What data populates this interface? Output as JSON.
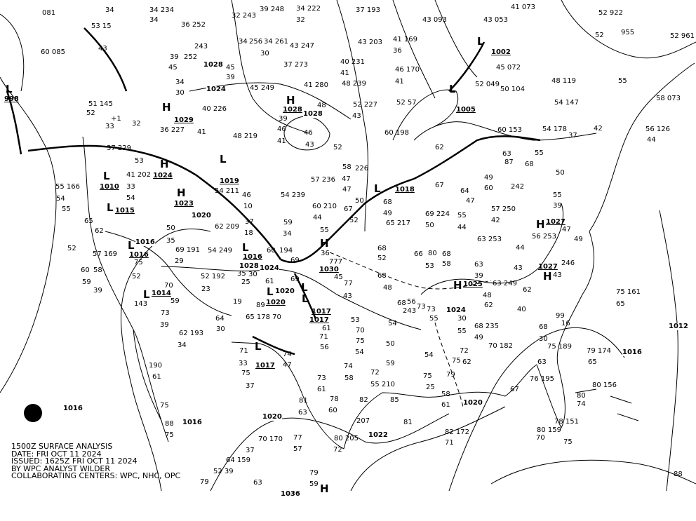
{
  "info": {
    "line1": "1500Z SURFACE ANALYSIS",
    "line2": "DATE: FRI OCT 11 2024",
    "line3": "ISSUED: 1625Z FRI OCT 11 2024",
    "line4": "BY WPC ANALYST WILDER",
    "line5": "COLLABORATING CENTERS: WPC, NHC, OPC"
  },
  "logo": "NOAA",
  "colors": {
    "lines": "#000000",
    "background": "#ffffff"
  },
  "centers": [
    {
      "type": "L",
      "pressure": "998"
    },
    {
      "type": "L",
      "pressure": "1002"
    },
    {
      "type": "L",
      "pressure": "1005"
    },
    {
      "type": "H",
      "pressure": "1029"
    },
    {
      "type": "L",
      "pressure": "1019"
    },
    {
      "type": "H",
      "pressure": "1024"
    },
    {
      "type": "L",
      "pressure": "1010"
    },
    {
      "type": "L",
      "pressure": "1015"
    },
    {
      "type": "H",
      "pressure": "1023"
    },
    {
      "type": "L",
      "pressure": "1016"
    },
    {
      "type": "H",
      "pressure": "1030"
    },
    {
      "type": "L",
      "pressure": "1018"
    },
    {
      "type": "L",
      "pressure": "1017"
    },
    {
      "type": "L",
      "pressure": "1017"
    },
    {
      "type": "L",
      "pressure": "1014"
    },
    {
      "type": "L",
      "pressure": "1017"
    },
    {
      "type": "H",
      "pressure": "1025"
    },
    {
      "type": "H",
      "pressure": "1027"
    },
    {
      "type": "H",
      "pressure": "1027"
    },
    {
      "type": "H",
      "pressure": ""
    },
    {
      "type": "L",
      "pressure": "1020"
    },
    {
      "type": "H",
      "pressure": "1028"
    },
    {
      "type": "L",
      "pressure": "1016"
    }
  ],
  "isobars": [
    "1016",
    "1016",
    "1020",
    "1022",
    "1020",
    "1016",
    "1012",
    "1024",
    "1028",
    "1024",
    "1028",
    "1020",
    "1016",
    "1024",
    "1020",
    "1036",
    "1028"
  ],
  "stations": [
    "081",
    "34",
    "34 234",
    "34",
    "36 252",
    "243",
    "32 243",
    "39 248",
    "34 222",
    "32",
    "37 193",
    "43 203",
    "41 169",
    "36",
    "43 093",
    "43 053",
    "41 073",
    "52 922",
    "52",
    "955",
    "52 961",
    "60 085",
    "53 15",
    "43",
    "39",
    "252",
    "45",
    "34",
    "30",
    "34",
    "256",
    "34 261",
    "43 247",
    "37 273",
    "30",
    "45",
    "39",
    "45 249",
    "41 280",
    "40 231",
    "41",
    "48 239",
    "52 227",
    "46 170",
    "41",
    "52 57",
    "45 072",
    "52 049",
    "50 104",
    "48 119",
    "54 147",
    "58 073",
    "55",
    "56 126",
    "44",
    "51 145",
    "52",
    "+1",
    "33",
    "32",
    "36 227",
    "40 226",
    "41",
    "48 219",
    "39",
    "46",
    "41",
    "46",
    "43",
    "48",
    "52",
    "43",
    "60 198",
    "62",
    "60 153",
    "54 178",
    "37",
    "42",
    "37 229",
    "53",
    "41 202",
    "33",
    "54",
    "55 166",
    "54",
    "55",
    "65",
    "62",
    "52",
    "57 169",
    "60",
    "58",
    "59",
    "39",
    "75",
    "52",
    "70",
    "59",
    "143",
    "73",
    "39",
    "62 193",
    "34",
    "190",
    "61",
    "75",
    "88",
    "75",
    "50",
    "35",
    "69 191",
    "29",
    "52 192",
    "23",
    "64",
    "30",
    "65 178 70",
    "71",
    "33",
    "75",
    "37",
    "74",
    "47",
    "81",
    "63",
    "73",
    "61",
    "78",
    "60",
    "74",
    "58",
    "72",
    "55 210",
    "82",
    "207",
    "80 205",
    "72",
    "85",
    "81",
    "59",
    "54",
    "50",
    "53",
    "70",
    "75",
    "54",
    "71",
    "56",
    "61",
    "89",
    "61",
    "54 211",
    "46",
    "10",
    "62 209",
    "37",
    "18",
    "54 249",
    "30",
    "35",
    "25",
    "19",
    "60",
    "194",
    "54 239",
    "59",
    "34",
    "69",
    "69",
    "60 210",
    "44",
    "55",
    "36",
    "45",
    "77",
    "43",
    "777",
    "57 236",
    "47",
    "58",
    "226",
    "47",
    "50",
    "67",
    "52",
    "68",
    "49",
    "65 217",
    "68",
    "52",
    "68",
    "48",
    "243",
    "68",
    "66",
    "80",
    "68",
    "53",
    "58",
    "50",
    "69 224",
    "67",
    "64",
    "55",
    "44",
    "47",
    "57 250",
    "63 253",
    "42",
    "60",
    "242",
    "49",
    "63",
    "87",
    "68",
    "55",
    "50",
    "55",
    "39",
    "56 253",
    "47",
    "49",
    "246",
    "43",
    "43",
    "44",
    "62",
    "40",
    "68",
    "30",
    "16",
    "99",
    "63",
    "75 189",
    "79 174",
    "65",
    "75 161",
    "65",
    "80 156",
    "80",
    "74",
    "78 151",
    "80 159",
    "70",
    "75",
    "76 195",
    "67",
    "82 172",
    "71",
    "79",
    "75",
    "72",
    "62",
    "70 182",
    "68 235",
    "49",
    "48",
    "62",
    "30",
    "55",
    "63 249",
    "63",
    "39",
    "54",
    "75",
    "25",
    "58",
    "61",
    "73",
    "55",
    "56",
    "73",
    "70 170",
    "37",
    "77",
    "57",
    "64 159",
    "52 39",
    "79",
    "63",
    "79",
    "59",
    "88"
  ]
}
